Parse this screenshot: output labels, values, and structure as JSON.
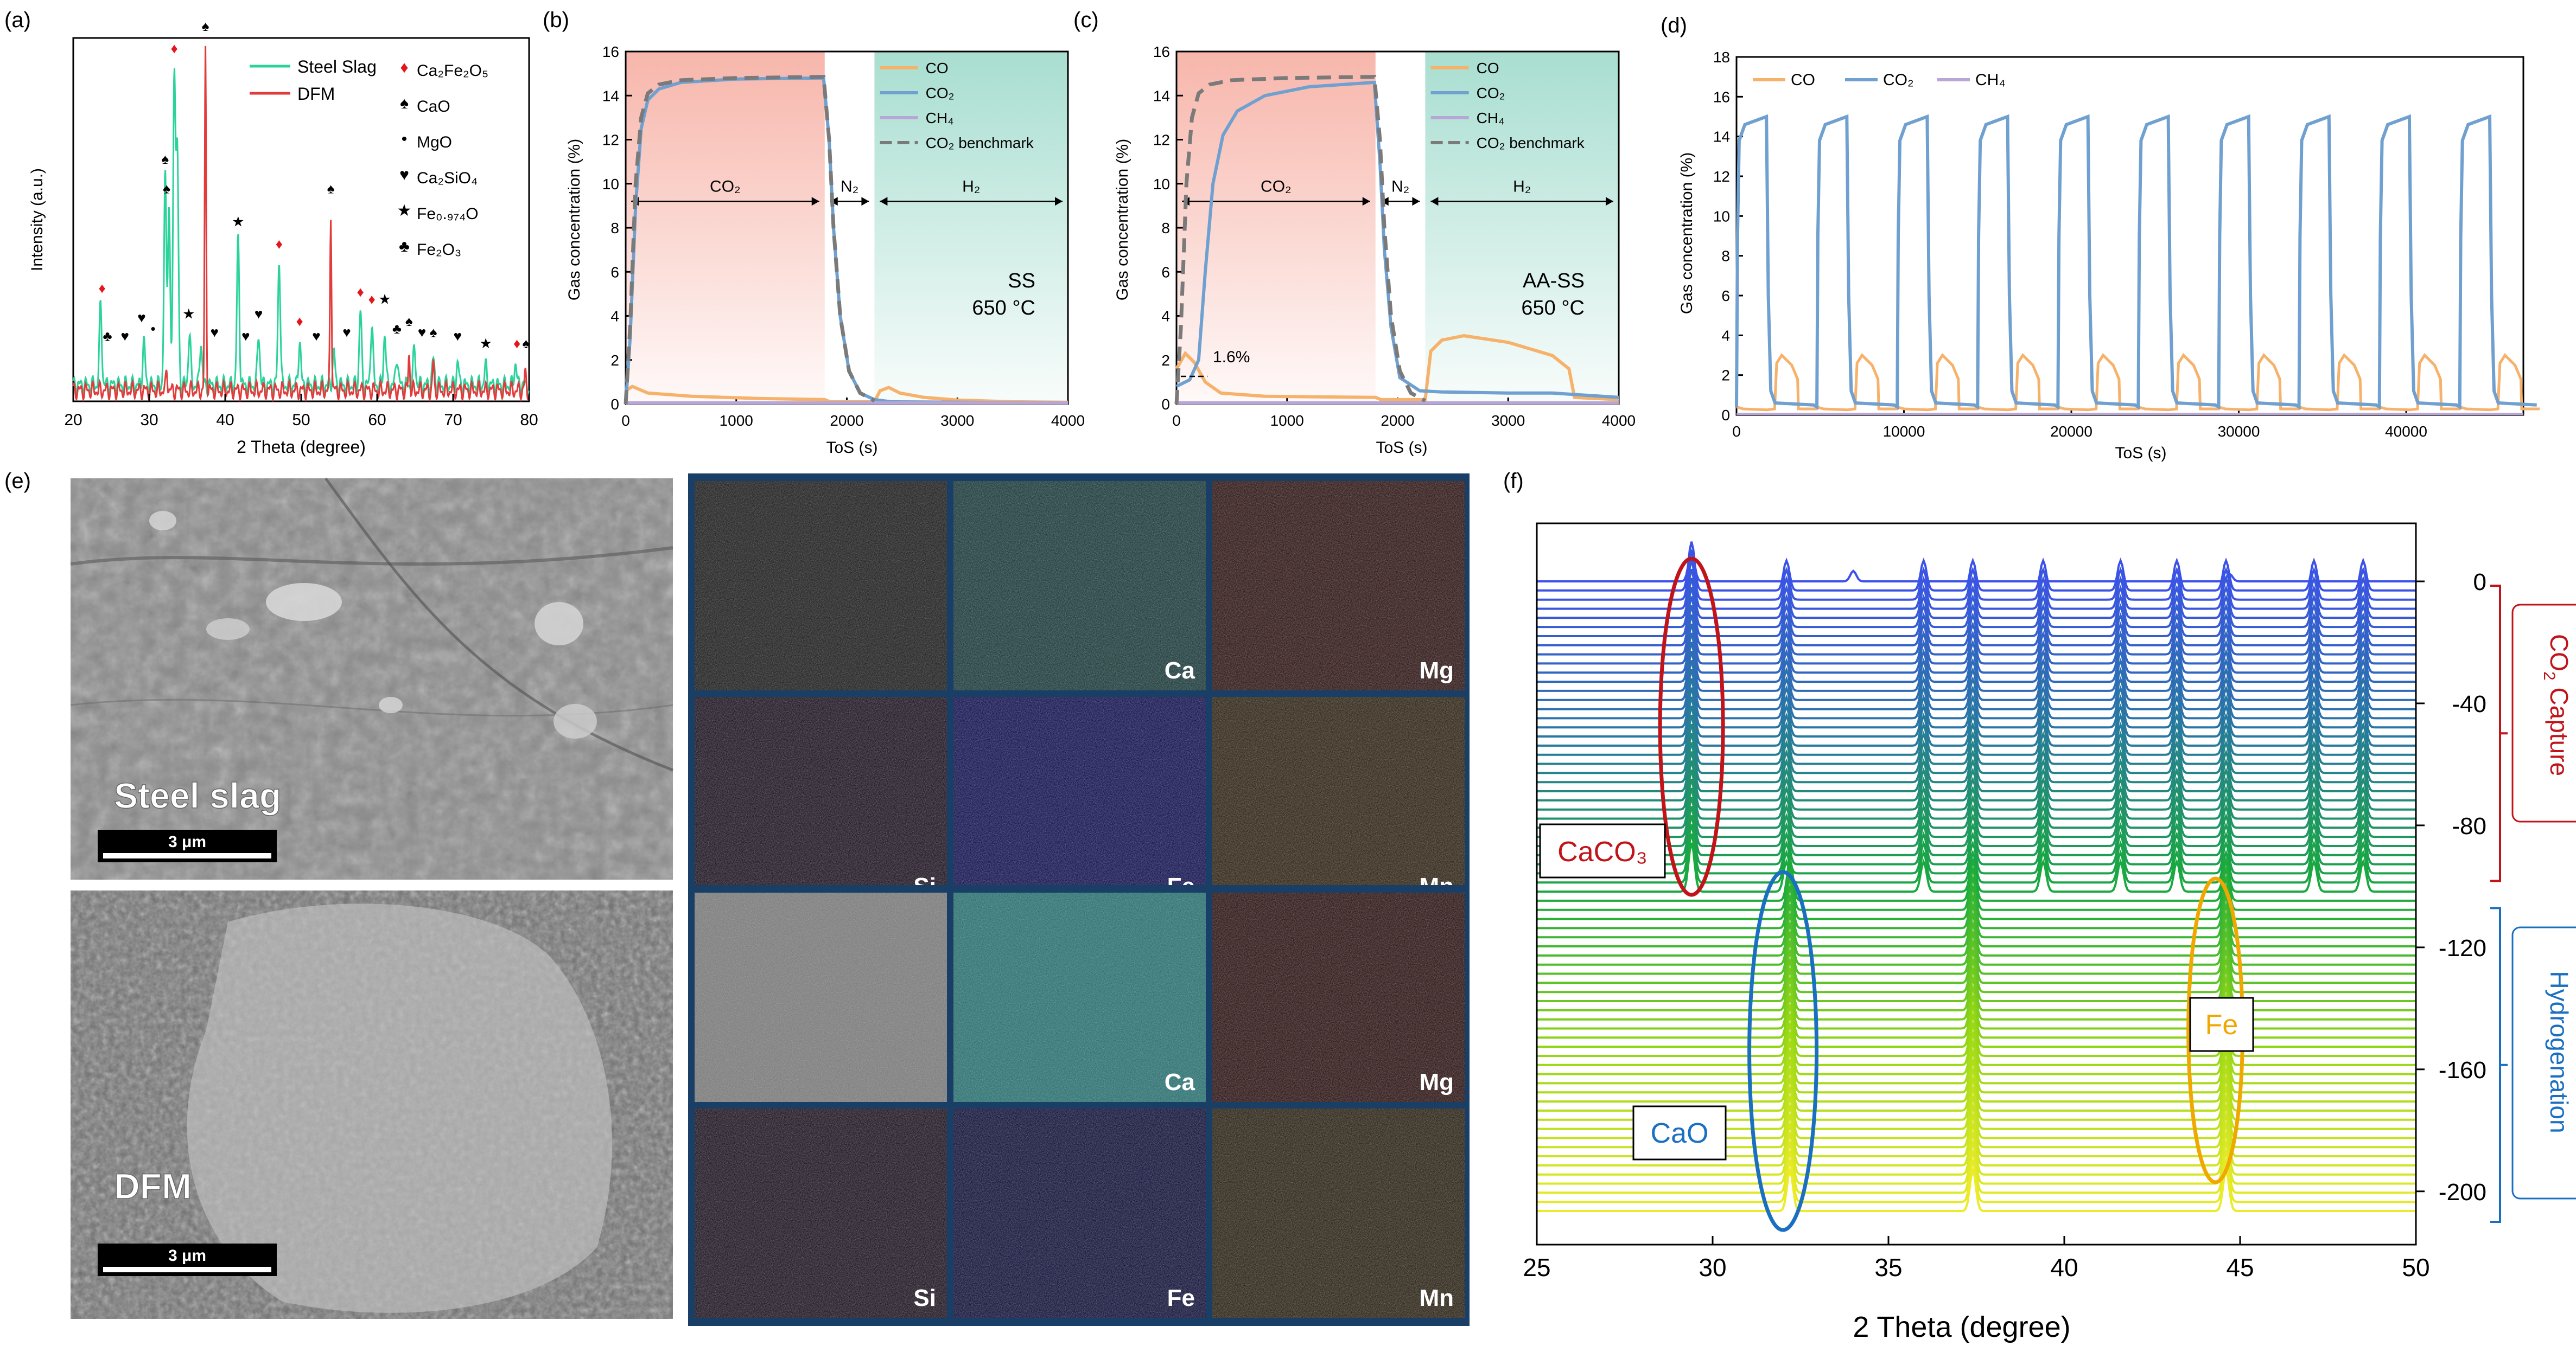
{
  "figure": {
    "panel_labels": [
      "(a)",
      "(b)",
      "(c)",
      "(d)",
      "(e)",
      "(f)"
    ]
  },
  "chart_data": [
    {
      "panel": "(a)",
      "type": "line",
      "xlabel": "2 Theta (degree)",
      "ylabel": "Intensity (a.u.)",
      "xlim": [
        20,
        80
      ],
      "xticks": [
        20,
        30,
        40,
        50,
        60,
        70,
        80
      ],
      "legend_placement": "top-right",
      "series": [
        {
          "name": "Steel Slag",
          "color": "#2bd39a",
          "peaks": [
            {
              "x": 23.6,
              "h": 0.22
            },
            {
              "x": 29.3,
              "h": 0.12
            },
            {
              "x": 32.1,
              "h": 0.56
            },
            {
              "x": 32.6,
              "h": 0.48
            },
            {
              "x": 33.3,
              "h": 0.86
            },
            {
              "x": 33.7,
              "h": 0.62
            },
            {
              "x": 35.3,
              "h": 0.14
            },
            {
              "x": 36.8,
              "h": 0.12
            },
            {
              "x": 41.7,
              "h": 0.4
            },
            {
              "x": 44.4,
              "h": 0.14
            },
            {
              "x": 47.1,
              "h": 0.34
            },
            {
              "x": 49.8,
              "h": 0.12
            },
            {
              "x": 54.3,
              "h": 0.09
            },
            {
              "x": 57.8,
              "h": 0.2
            },
            {
              "x": 59.3,
              "h": 0.17
            },
            {
              "x": 61.0,
              "h": 0.14
            },
            {
              "x": 62.6,
              "h": 0.08
            },
            {
              "x": 64.9,
              "h": 0.1
            },
            {
              "x": 67.4,
              "h": 0.07
            },
            {
              "x": 70.6,
              "h": 0.06
            },
            {
              "x": 74.3,
              "h": 0.05
            },
            {
              "x": 78.2,
              "h": 0.06
            }
          ]
        },
        {
          "name": "DFM",
          "color": "#e23b3b",
          "peaks": [
            {
              "x": 32.3,
              "h": 0.06
            },
            {
              "x": 37.4,
              "h": 0.92
            },
            {
              "x": 53.9,
              "h": 0.48
            },
            {
              "x": 64.2,
              "h": 0.1
            },
            {
              "x": 67.4,
              "h": 0.08
            },
            {
              "x": 79.5,
              "h": 0.05
            }
          ]
        }
      ],
      "legend_phases": [
        {
          "symbol": "♦",
          "color": "#e4151b",
          "label": "Ca₂Fe₂O₅"
        },
        {
          "symbol": "♠",
          "color": "#000000",
          "label": "CaO"
        },
        {
          "symbol": "•",
          "color": "#000000",
          "label": "MgO"
        },
        {
          "symbol": "♥",
          "color": "#000000",
          "label": "Ca₂SiO₄"
        },
        {
          "symbol": "★",
          "color": "#000000",
          "label": "Fe₀.₉₇₄O"
        },
        {
          "symbol": "♣",
          "color": "#000000",
          "label": "Fe₂O₃"
        }
      ]
    },
    {
      "panel": "(b)",
      "type": "line",
      "xlabel": "ToS (s)",
      "ylabel": "Gas concentration (%)",
      "xlim": [
        0,
        4000
      ],
      "ylim": [
        0,
        16
      ],
      "xticks": [
        0,
        1000,
        2000,
        3000,
        4000
      ],
      "yticks": [
        0,
        2,
        4,
        6,
        8,
        10,
        12,
        14,
        16
      ],
      "regions": [
        {
          "label": "CO₂",
          "from": 0,
          "to": 1800,
          "color": "#f7b6ab"
        },
        {
          "label": "N₂",
          "from": 1800,
          "to": 2250,
          "color": "#ffffff"
        },
        {
          "label": "H₂",
          "from": 2250,
          "to": 4000,
          "color": "#a8ded0"
        }
      ],
      "annotation": [
        "SS",
        "650 °C"
      ],
      "legend": [
        "CO",
        "CO₂",
        "CH₄",
        "CO₂ benchmark"
      ],
      "series": [
        {
          "name": "CO",
          "color": "#f6b26b",
          "points": [
            [
              0,
              0.6
            ],
            [
              60,
              0.8
            ],
            [
              200,
              0.5
            ],
            [
              600,
              0.35
            ],
            [
              1200,
              0.25
            ],
            [
              1800,
              0.2
            ],
            [
              1850,
              0.1
            ],
            [
              2250,
              0.1
            ],
            [
              2300,
              0.6
            ],
            [
              2380,
              0.75
            ],
            [
              2480,
              0.5
            ],
            [
              2700,
              0.3
            ],
            [
              3000,
              0.18
            ],
            [
              3500,
              0.1
            ],
            [
              4000,
              0.08
            ]
          ]
        },
        {
          "name": "CO₂",
          "color": "#6fa0cf",
          "points": [
            [
              0,
              0
            ],
            [
              40,
              3
            ],
            [
              90,
              9
            ],
            [
              140,
              12.5
            ],
            [
              200,
              13.8
            ],
            [
              300,
              14.3
            ],
            [
              500,
              14.6
            ],
            [
              1000,
              14.75
            ],
            [
              1790,
              14.8
            ],
            [
              1840,
              12
            ],
            [
              1880,
              8
            ],
            [
              1940,
              4
            ],
            [
              2020,
              1.5
            ],
            [
              2120,
              0.5
            ],
            [
              2250,
              0.2
            ],
            [
              2400,
              0.1
            ],
            [
              4000,
              0.05
            ]
          ]
        },
        {
          "name": "CH₄",
          "color": "#b7a6d6",
          "points": [
            [
              0,
              0.05
            ],
            [
              4000,
              0.05
            ]
          ]
        },
        {
          "name": "CO₂ benchmark",
          "color": "#7a7a7a",
          "dashed": true,
          "points": [
            [
              0,
              0
            ],
            [
              40,
              3.5
            ],
            [
              90,
              10
            ],
            [
              140,
              13
            ],
            [
              200,
              14.1
            ],
            [
              300,
              14.5
            ],
            [
              500,
              14.7
            ],
            [
              1000,
              14.8
            ],
            [
              1790,
              14.85
            ],
            [
              1840,
              12
            ],
            [
              1880,
              8
            ],
            [
              1940,
              4
            ],
            [
              2020,
              1.5
            ],
            [
              2120,
              0.5
            ],
            [
              2250,
              0.15
            ]
          ]
        }
      ]
    },
    {
      "panel": "(c)",
      "type": "line",
      "xlabel": "ToS (s)",
      "ylabel": "Gas concentration (%)",
      "xlim": [
        0,
        4000
      ],
      "ylim": [
        0,
        16
      ],
      "xticks": [
        0,
        1000,
        2000,
        3000,
        4000
      ],
      "yticks": [
        0,
        2,
        4,
        6,
        8,
        10,
        12,
        14,
        16
      ],
      "regions": [
        {
          "label": "CO₂",
          "from": 0,
          "to": 1800,
          "color": "#f7b6ab"
        },
        {
          "label": "N₂",
          "from": 1800,
          "to": 2250,
          "color": "#ffffff"
        },
        {
          "label": "H₂",
          "from": 2250,
          "to": 4000,
          "color": "#a8ded0"
        }
      ],
      "annotation": [
        "AA-SS",
        "650 °C"
      ],
      "callout": "1.6%",
      "legend": [
        "CO",
        "CO₂",
        "CH₄",
        "CO₂ benchmark"
      ],
      "series": [
        {
          "name": "CO",
          "color": "#f6b26b",
          "points": [
            [
              0,
              1.6
            ],
            [
              80,
              2.3
            ],
            [
              160,
              1.9
            ],
            [
              260,
              1.0
            ],
            [
              400,
              0.5
            ],
            [
              800,
              0.35
            ],
            [
              1800,
              0.3
            ],
            [
              1850,
              0.2
            ],
            [
              2250,
              0.2
            ],
            [
              2300,
              2.4
            ],
            [
              2400,
              2.9
            ],
            [
              2600,
              3.1
            ],
            [
              3000,
              2.8
            ],
            [
              3400,
              2.2
            ],
            [
              3550,
              1.6
            ],
            [
              3600,
              0.3
            ],
            [
              4000,
              0.2
            ]
          ]
        },
        {
          "name": "CO₂",
          "color": "#6fa0cf",
          "points": [
            [
              0,
              0.8
            ],
            [
              120,
              1.1
            ],
            [
              200,
              2
            ],
            [
              260,
              6
            ],
            [
              330,
              10
            ],
            [
              420,
              12.2
            ],
            [
              550,
              13.3
            ],
            [
              800,
              14.0
            ],
            [
              1200,
              14.4
            ],
            [
              1790,
              14.6
            ],
            [
              1840,
              11
            ],
            [
              1880,
              7
            ],
            [
              1940,
              3.5
            ],
            [
              2020,
              1.2
            ],
            [
              2200,
              0.6
            ],
            [
              2400,
              0.55
            ],
            [
              3000,
              0.5
            ],
            [
              3400,
              0.5
            ],
            [
              4000,
              0.3
            ]
          ]
        },
        {
          "name": "CH₄",
          "color": "#b7a6d6",
          "points": [
            [
              0,
              0.05
            ],
            [
              4000,
              0.05
            ]
          ]
        },
        {
          "name": "CO₂ benchmark",
          "color": "#7a7a7a",
          "dashed": true,
          "points": [
            [
              0,
              0
            ],
            [
              40,
              3.5
            ],
            [
              90,
              10
            ],
            [
              140,
              13
            ],
            [
              200,
              14.1
            ],
            [
              300,
              14.5
            ],
            [
              500,
              14.7
            ],
            [
              1000,
              14.8
            ],
            [
              1790,
              14.85
            ],
            [
              1840,
              12
            ],
            [
              1880,
              8
            ],
            [
              1940,
              4
            ],
            [
              2020,
              1.5
            ],
            [
              2120,
              0.5
            ],
            [
              2250,
              0.15
            ]
          ]
        }
      ]
    },
    {
      "panel": "(d)",
      "type": "line",
      "xlabel": "ToS (s)",
      "ylabel": "Gas concentration (%)",
      "xlim": [
        0,
        47000
      ],
      "ylim": [
        0,
        18
      ],
      "xticks": [
        0,
        10000,
        20000,
        30000,
        40000
      ],
      "yticks": [
        0,
        2,
        4,
        6,
        8,
        10,
        12,
        14,
        16,
        18
      ],
      "legend": [
        "CO",
        "CO₂",
        "CH₄"
      ],
      "cycles": 10,
      "cycle_period": 4800,
      "cycle_co2_max": 15,
      "cycle_co_max": 3
    },
    {
      "panel": "(f)",
      "type": "waterfall",
      "xlabel": "2 Theta (degree)",
      "xlim": [
        25,
        50
      ],
      "xticks": [
        25,
        30,
        35,
        40,
        45,
        50
      ],
      "right_axis_ticks": [
        0,
        -40,
        -80,
        -120,
        -160,
        -200
      ],
      "right_axis_range": [
        0,
        -210
      ],
      "regions": [
        {
          "label": "CO₂ Capture",
          "from": 0,
          "to": -100,
          "color": "#c0141a"
        },
        {
          "label": "Hydrogenation",
          "from": -100,
          "to": -210,
          "color": "#1a6fc0"
        }
      ],
      "phase_labels": [
        {
          "label": "CaCO₃",
          "color": "#c0141a"
        },
        {
          "label": "CaO",
          "color": "#1a6fc0"
        },
        {
          "label": "Fe",
          "color": "#f0a800"
        }
      ],
      "top_trace_peaks": [
        {
          "x": 29.4,
          "h": 1.0
        },
        {
          "x": 34.0,
          "h": 0.35
        },
        {
          "x": 44.7,
          "h": 0.25
        }
      ],
      "capture_peaks": [
        29.4,
        32.1,
        36.0,
        37.4,
        39.4,
        41.6,
        43.2,
        44.6,
        47.1,
        48.5
      ],
      "hydrogenation_peaks": [
        32.2,
        37.4,
        44.6
      ]
    }
  ],
  "sem": {
    "images": [
      {
        "label": "Steel slag",
        "scale": "3 μm"
      },
      {
        "label": "DFM",
        "scale": "3 μm"
      }
    ],
    "maps_top": [
      "",
      "Ca",
      "Mg",
      "Si",
      "Fe",
      "Mn"
    ],
    "maps_bottom": [
      "",
      "Ca",
      "Mg",
      "Si",
      "Fe",
      "Mn"
    ]
  },
  "colors": {
    "co": "#f6b26b",
    "co2": "#6fa0cf",
    "ch4": "#b7a6d6",
    "benchmark": "#7a7a7a"
  }
}
